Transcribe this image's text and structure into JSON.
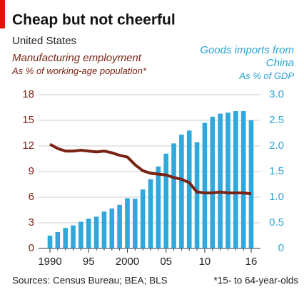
{
  "chart_data": {
    "type": "bar_line",
    "title": "Cheap but not cheerful",
    "subtitle": "United States",
    "categories": [
      "1990",
      null,
      null,
      null,
      null,
      "95",
      null,
      null,
      null,
      null,
      "2000",
      null,
      null,
      null,
      null,
      "05",
      null,
      null,
      null,
      null,
      "10",
      null,
      null,
      null,
      null,
      null,
      "16"
    ],
    "series": [
      {
        "name": "Goods imports from China",
        "unit_label": "As % of GDP",
        "type": "bar",
        "axis": "y2",
        "color": "#2fa8dc",
        "values": [
          0.25,
          0.32,
          0.4,
          0.45,
          0.52,
          0.58,
          0.62,
          0.72,
          0.78,
          0.85,
          0.98,
          0.97,
          1.15,
          1.35,
          1.6,
          1.85,
          2.05,
          2.22,
          2.3,
          2.07,
          2.45,
          2.57,
          2.63,
          2.65,
          2.68,
          2.68,
          2.5
        ]
      },
      {
        "name": "Manufacturing employment",
        "unit_label": "As % of working-age population*",
        "type": "line",
        "axis": "y",
        "color": "#7a2314",
        "values": [
          12.2,
          11.7,
          11.4,
          11.4,
          11.5,
          11.4,
          11.3,
          11.4,
          11.2,
          10.9,
          10.7,
          9.8,
          9.1,
          8.8,
          8.7,
          8.6,
          8.3,
          8.1,
          7.7,
          6.6,
          6.5,
          6.5,
          6.6,
          6.5,
          6.5,
          6.5,
          6.4
        ]
      }
    ],
    "ylim": [
      0,
      18
    ],
    "yticks": [
      0,
      3,
      6,
      9,
      12,
      15,
      18
    ],
    "y2lim": [
      0,
      3
    ],
    "y2ticks": [
      0,
      0.5,
      {
        "value": 1,
        "label": "1.0"
      },
      1.5,
      {
        "value": 2,
        "label": "2.0"
      },
      2.5,
      {
        "value": 3,
        "label": "3.0"
      }
    ],
    "grid": true,
    "source": "Sources: Census Bureau; BEA; BLS",
    "footnote": "*15- to 64-year-olds"
  }
}
